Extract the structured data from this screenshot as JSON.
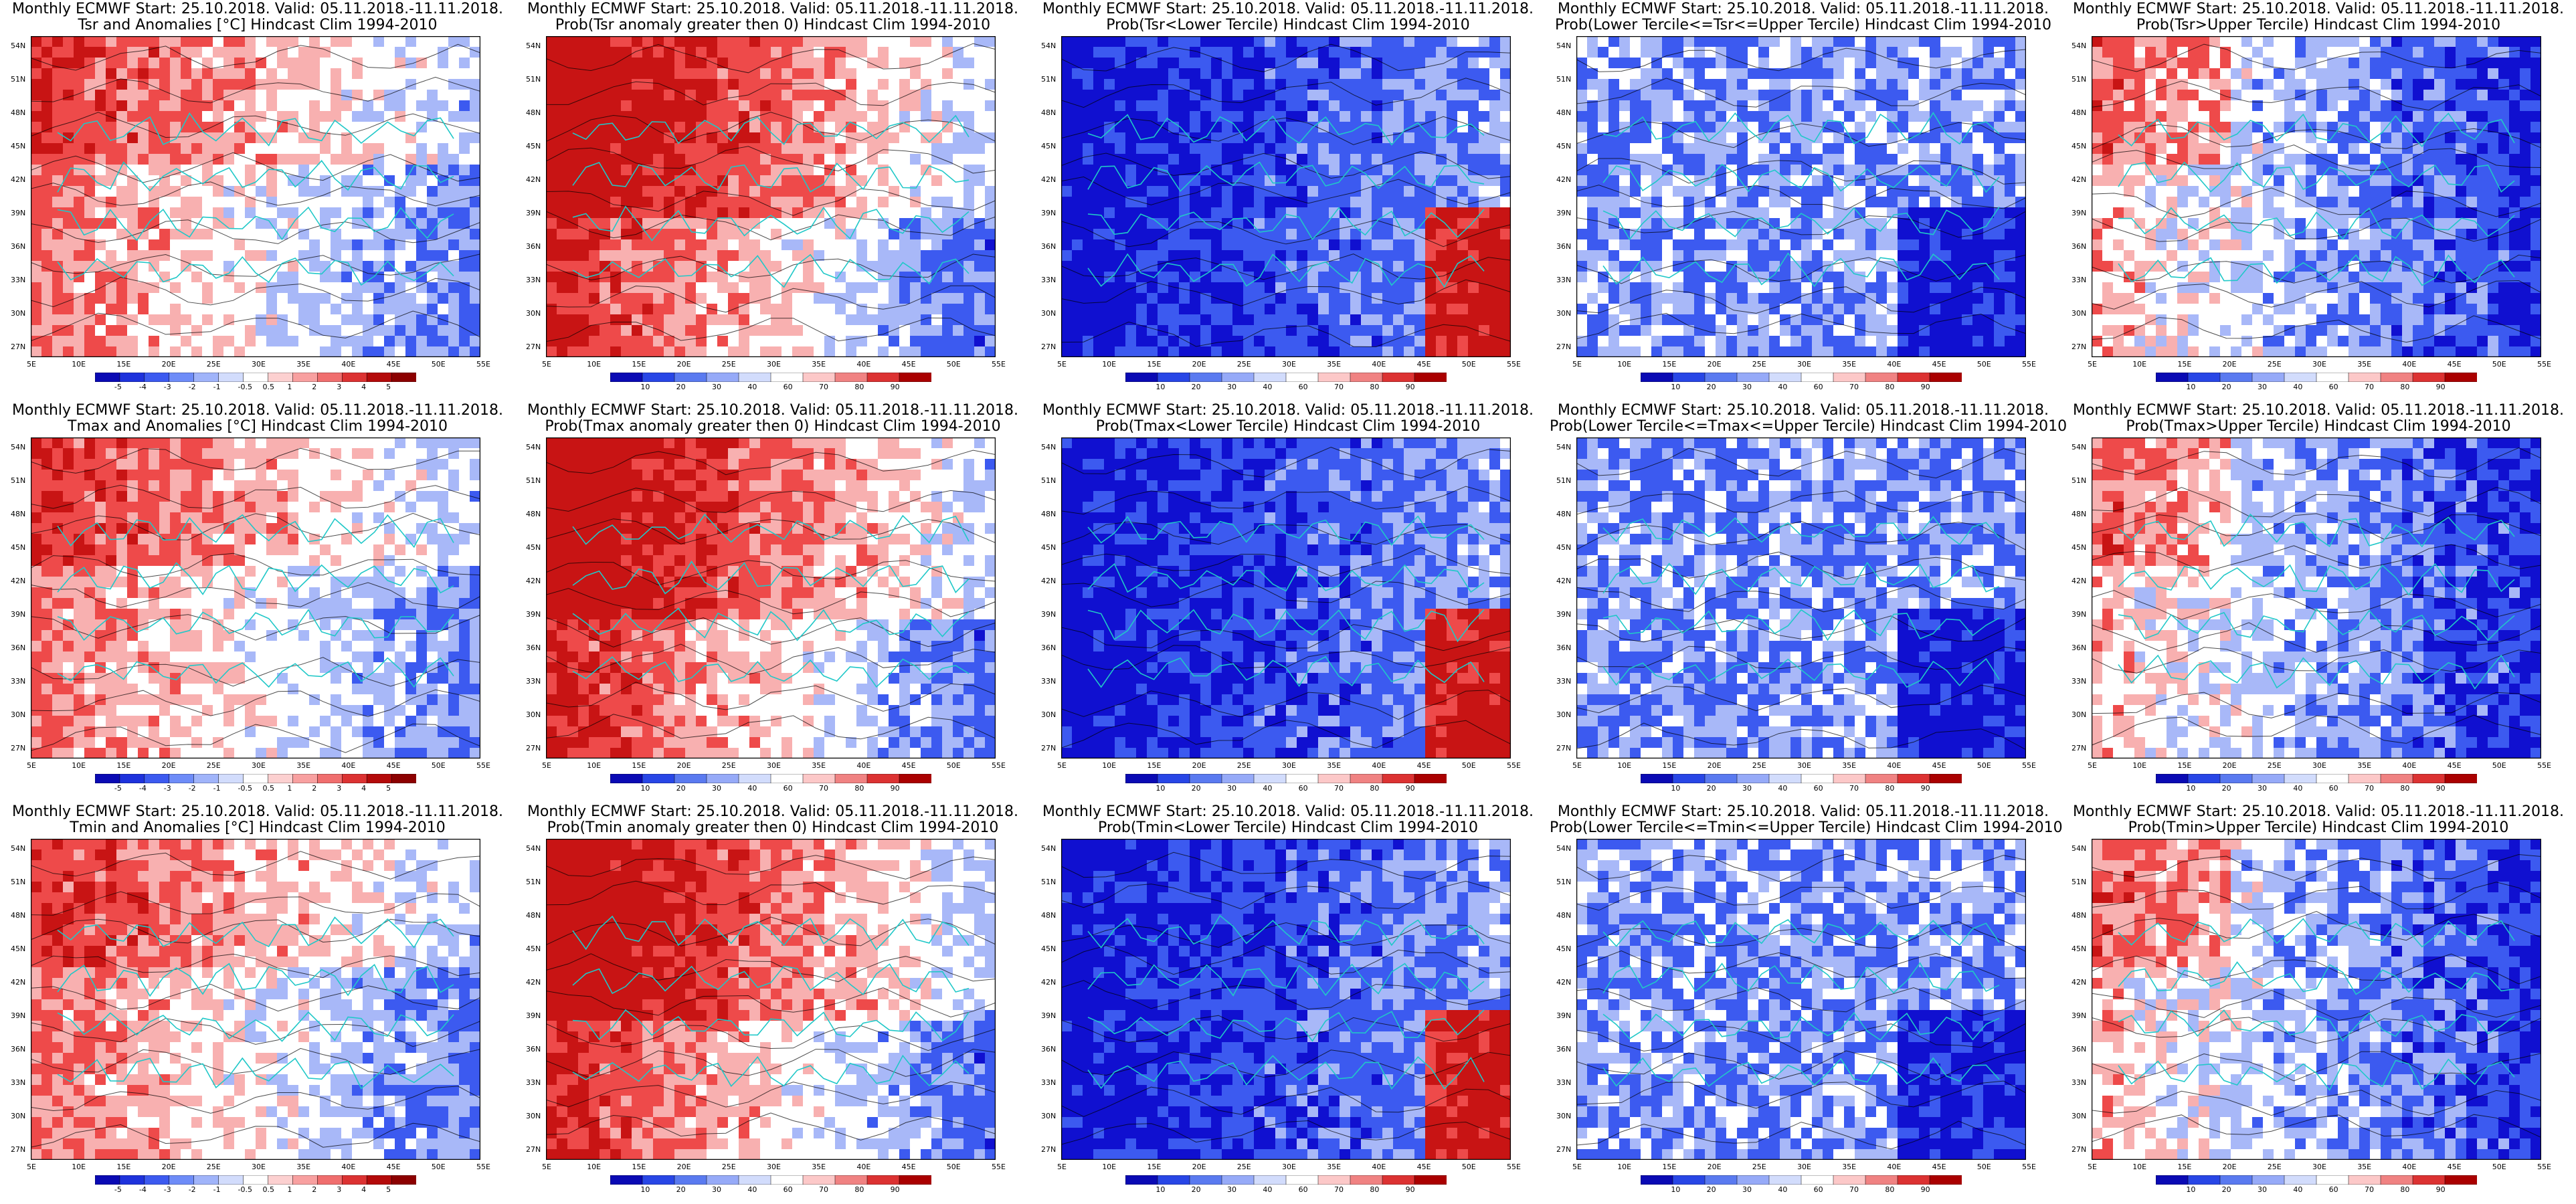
{
  "lat_labels": [
    "54N",
    "51N",
    "48N",
    "45N",
    "42N",
    "39N",
    "36N",
    "33N",
    "30N",
    "27N"
  ],
  "lon_labels": [
    "5E",
    "10E",
    "15E",
    "20E",
    "25E",
    "30E",
    "35E",
    "40E",
    "45E",
    "50E",
    "55E"
  ],
  "colors": {
    "blue_dark": "#1010d0",
    "blue_mid": "#3c5af0",
    "blue_light": "#a8b8f8",
    "red_dark": "#c81414",
    "red_mid": "#ee4a4a",
    "red_light": "#f8b0b0",
    "contour": "#000000",
    "coast": "#20c8c8"
  },
  "colorbars": {
    "anomaly": [
      "-5",
      "-4",
      "-3",
      "-2",
      "-1",
      "-0.5",
      "0.5",
      "1",
      "2",
      "3",
      "4",
      "5"
    ],
    "probability": [
      "10",
      "20",
      "30",
      "40",
      "60",
      "70",
      "80",
      "90"
    ]
  },
  "panels": [
    {
      "line1": "Monthly ECMWF Start: 25.10.2018. Valid: 05.11.2018.-11.11.2018.",
      "line2": "Tsr and Anomalies [°C] Hindcast Clim 1994-2010",
      "scale": "anomaly",
      "pattern": "warm"
    },
    {
      "line1": "Monthly ECMWF Start: 25.10.2018. Valid: 05.11.2018.-11.11.2018.",
      "line2": "Prob(Tsr anomaly greater then 0) Hindcast Clim 1994-2010",
      "scale": "probability",
      "pattern": "warm_strong"
    },
    {
      "line1": "Monthly ECMWF Start: 25.10.2018. Valid: 05.11.2018.-11.11.2018.",
      "line2": "Prob(Tsr<Lower Tercile) Hindcast Clim 1994-2010",
      "scale": "probability",
      "pattern": "cold_strong"
    },
    {
      "line1": "Monthly ECMWF Start: 25.10.2018. Valid: 05.11.2018.-11.11.2018.",
      "line2": "Prob(Lower Tercile<=Tsr<=Upper Tercile) Hindcast Clim 1994-2010",
      "scale": "probability",
      "pattern": "mixed_blue"
    },
    {
      "line1": "Monthly ECMWF Start: 25.10.2018. Valid: 05.11.2018.-11.11.2018.",
      "line2": "Prob(Tsr>Upper Tercile) Hindcast Clim 1994-2010",
      "scale": "probability",
      "pattern": "upper"
    },
    {
      "line1": "Monthly ECMWF Start: 25.10.2018. Valid: 05.11.2018.-11.11.2018.",
      "line2": "Tmax and Anomalies [°C] Hindcast Clim 1994-2010",
      "scale": "anomaly",
      "pattern": "warm"
    },
    {
      "line1": "Monthly ECMWF Start: 25.10.2018. Valid: 05.11.2018.-11.11.2018.",
      "line2": "Prob(Tmax anomaly greater then 0) Hindcast Clim 1994-2010",
      "scale": "probability",
      "pattern": "warm_strong"
    },
    {
      "line1": "Monthly ECMWF Start: 25.10.2018. Valid: 05.11.2018.-11.11.2018.",
      "line2": "Prob(Tmax<Lower Tercile) Hindcast Clim 1994-2010",
      "scale": "probability",
      "pattern": "cold_strong"
    },
    {
      "line1": "Monthly ECMWF Start: 25.10.2018. Valid: 05.11.2018.-11.11.2018.",
      "line2": "Prob(Lower Tercile<=Tmax<=Upper Tercile) Hindcast Clim 1994-2010",
      "scale": "probability",
      "pattern": "mixed_blue"
    },
    {
      "line1": "Monthly ECMWF Start: 25.10.2018. Valid: 05.11.2018.-11.11.2018.",
      "line2": "Prob(Tmax>Upper Tercile) Hindcast Clim 1994-2010",
      "scale": "probability",
      "pattern": "upper"
    },
    {
      "line1": "Monthly ECMWF Start: 25.10.2018. Valid: 05.11.2018.-11.11.2018.",
      "line2": "Tmin and Anomalies [°C] Hindcast Clim 1994-2010",
      "scale": "anomaly",
      "pattern": "warm"
    },
    {
      "line1": "Monthly ECMWF Start: 25.10.2018. Valid: 05.11.2018.-11.11.2018.",
      "line2": "Prob(Tmin anomaly greater then 0) Hindcast Clim 1994-2010",
      "scale": "probability",
      "pattern": "warm_strong"
    },
    {
      "line1": "Monthly ECMWF Start: 25.10.2018. Valid: 05.11.2018.-11.11.2018.",
      "line2": "Prob(Tmin<Lower Tercile) Hindcast Clim 1994-2010",
      "scale": "probability",
      "pattern": "cold_strong"
    },
    {
      "line1": "Monthly ECMWF Start: 25.10.2018. Valid: 05.11.2018.-11.11.2018.",
      "line2": "Prob(Lower Tercile<=Tmin<=Upper Tercile) Hindcast Clim 1994-2010",
      "scale": "probability",
      "pattern": "mixed_blue"
    },
    {
      "line1": "Monthly ECMWF Start: 25.10.2018. Valid: 05.11.2018.-11.11.2018.",
      "line2": "Prob(Tmin>Upper Tercile) Hindcast Clim 1994-2010",
      "scale": "probability",
      "pattern": "upper"
    }
  ]
}
